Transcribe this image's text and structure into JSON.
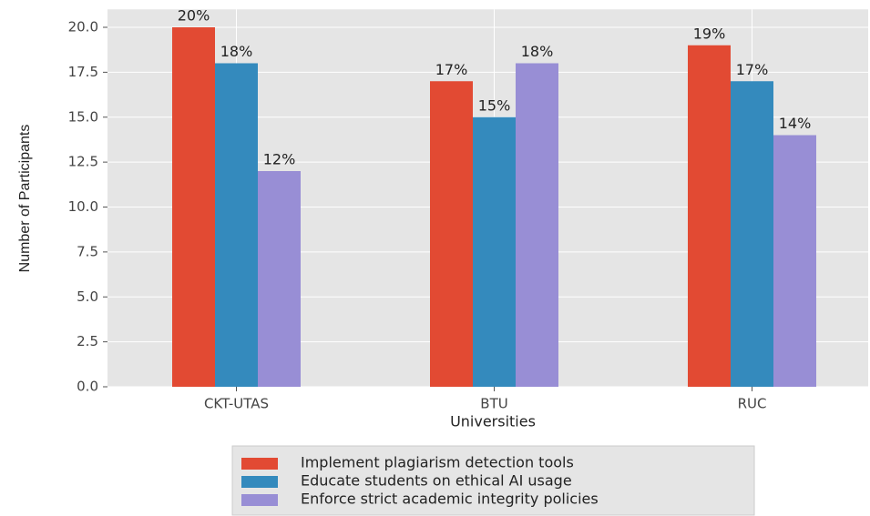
{
  "chart_data": {
    "type": "bar",
    "xlabel": "Universities",
    "ylabel": "Number of Participants",
    "categories": [
      "CKT-UTAS",
      "BTU",
      "RUC"
    ],
    "series": [
      {
        "name": "Implement plagiarism detection tools",
        "color": "#E24A33",
        "values": [
          20,
          17,
          19
        ],
        "value_labels": [
          "20%",
          "17%",
          "19%"
        ]
      },
      {
        "name": "Educate students on ethical AI usage",
        "color": "#348ABD",
        "values": [
          18,
          15,
          17
        ],
        "value_labels": [
          "18%",
          "15%",
          "17%"
        ]
      },
      {
        "name": "Enforce strict academic integrity policies",
        "color": "#988ED5",
        "values": [
          12,
          18,
          14
        ],
        "value_labels": [
          "12%",
          "18%",
          "14%"
        ]
      }
    ],
    "ylim": [
      0,
      21
    ],
    "yticks": [
      {
        "value": 0,
        "label": "0.0"
      },
      2.5,
      {
        "value": 5,
        "label": "5.0"
      },
      7.5,
      {
        "value": 10,
        "label": "10.0"
      },
      12.5,
      {
        "value": 15,
        "label": "15.0"
      },
      17.5,
      {
        "value": 20,
        "label": "20.0"
      }
    ],
    "grid": true,
    "legend": "bottom"
  }
}
